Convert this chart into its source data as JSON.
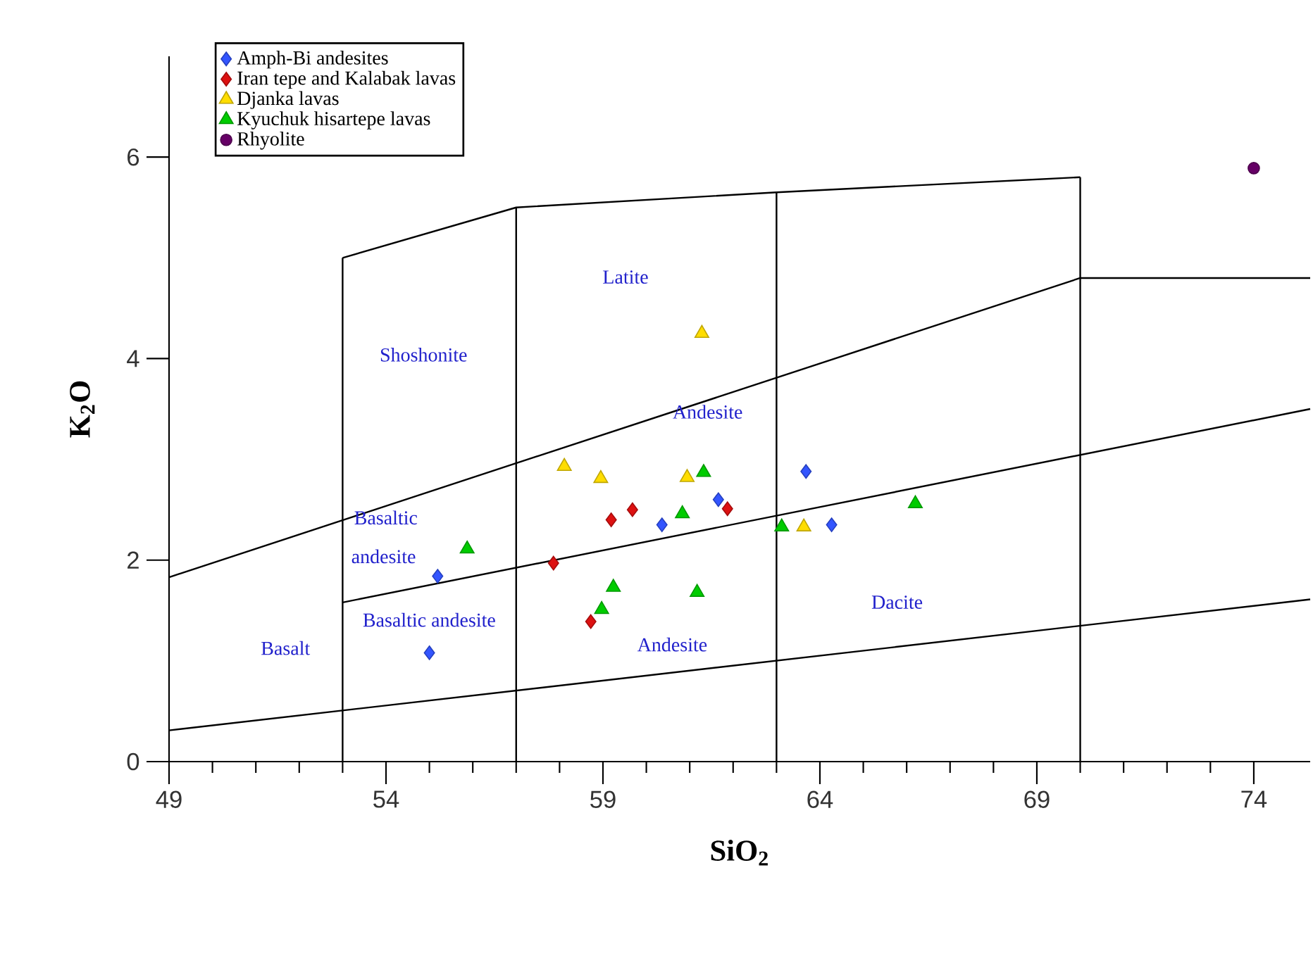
{
  "chart_data": {
    "type": "scatter",
    "xlabel": "SiO$_{2}$",
    "ylabel": "K$_{2}$O",
    "xlim": [
      49,
      75.3
    ],
    "ylim": [
      0,
      7
    ],
    "xticks": [
      49,
      54,
      59,
      64,
      69,
      74
    ],
    "yticks": [
      0,
      2,
      4,
      6
    ],
    "grid": false,
    "legend": "top left",
    "series": [
      {
        "name": "Amph-Bi andesites",
        "color": "#3355ff",
        "marker": "diamond",
        "x": [
          55.19,
          55.0,
          60.36,
          61.66,
          63.68,
          64.27
        ],
        "values": [
          1.84,
          1.08,
          2.35,
          2.6,
          2.88,
          2.35
        ]
      },
      {
        "name": "Iran tepe and Kalabak lavas",
        "color": "#dd1111",
        "marker": "diamond",
        "x": [
          57.86,
          58.72,
          59.19,
          59.68,
          61.87
        ],
        "values": [
          1.97,
          1.39,
          2.4,
          2.5,
          2.51
        ]
      },
      {
        "name": "Djanka lavas",
        "color": "#ffdd00",
        "marker": "triangle",
        "x": [
          58.11,
          58.95,
          61.28,
          60.94,
          63.63
        ],
        "values": [
          2.93,
          2.81,
          4.25,
          2.82,
          2.33
        ]
      },
      {
        "name": "Kyuchuk hisartepe lavas",
        "color": "#00cc00",
        "marker": "triangle",
        "x": [
          55.87,
          59.24,
          58.97,
          61.32,
          60.83,
          63.12,
          66.2,
          61.17
        ],
        "values": [
          2.11,
          1.73,
          1.51,
          2.87,
          2.46,
          2.33,
          2.56,
          1.68
        ]
      },
      {
        "name": "Rhyolite",
        "color": "#660066",
        "marker": "circle",
        "x": [
          74.0
        ],
        "values": [
          5.89
        ]
      },
      {
        "type": "line",
        "color": "#000000",
        "x": [
          49,
          75.3
        ],
        "values": [
          0.31,
          1.61
        ]
      },
      {
        "type": "line",
        "color": "#000000",
        "x": [
          53,
          75.3
        ],
        "values": [
          1.58,
          3.5
        ]
      },
      {
        "type": "line",
        "color": "#000000",
        "x": [
          49,
          70,
          75.3
        ],
        "values": [
          1.83,
          4.8,
          4.8
        ]
      },
      {
        "type": "line",
        "color": "#000000",
        "x": [
          53,
          57,
          63,
          70
        ],
        "values": [
          5.0,
          5.5,
          5.65,
          5.8
        ]
      },
      {
        "type": "line",
        "color": "#000000",
        "x": [
          53,
          53
        ],
        "values": [
          0,
          5.0
        ]
      },
      {
        "type": "line",
        "color": "#000000",
        "x": [
          57,
          57
        ],
        "values": [
          0,
          5.5
        ]
      },
      {
        "type": "line",
        "color": "#000000",
        "x": [
          63,
          63
        ],
        "values": [
          0,
          5.65
        ]
      },
      {
        "type": "line",
        "color": "#000000",
        "x": [
          70,
          70
        ],
        "values": [
          0,
          5.8
        ]
      }
    ],
    "annotations": [
      "Latite",
      "Shoshonite",
      "Andesite",
      "Basaltic",
      "andesite",
      "Basaltic andesite",
      "Basalt",
      "Andesite",
      "Dacite"
    ]
  }
}
